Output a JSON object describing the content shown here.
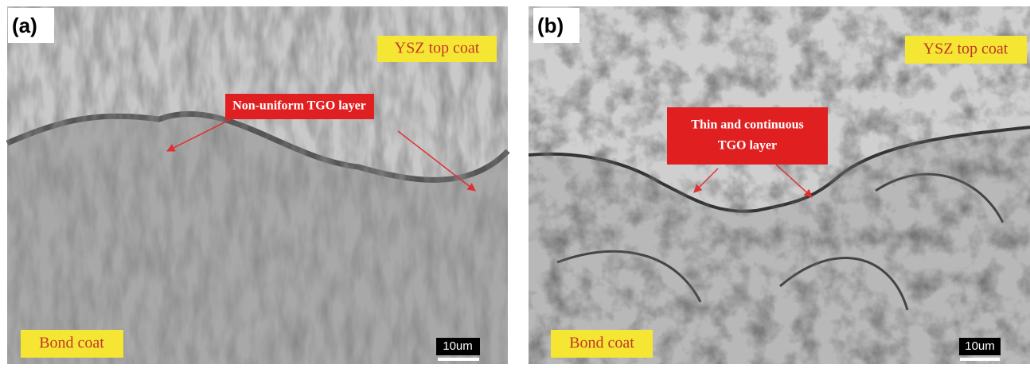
{
  "panels": [
    {
      "label": "(a)",
      "top_coat": "YSZ top coat",
      "tgo_lines": [
        "Non-uniform TGO layer"
      ],
      "bond_coat": "Bond coat",
      "scale_bar": "10um"
    },
    {
      "label": "(b)",
      "top_coat": "YSZ top coat",
      "tgo_lines": [
        "Thin and continuous",
        "TGO layer"
      ],
      "bond_coat": "Bond coat",
      "scale_bar": "10um"
    }
  ]
}
